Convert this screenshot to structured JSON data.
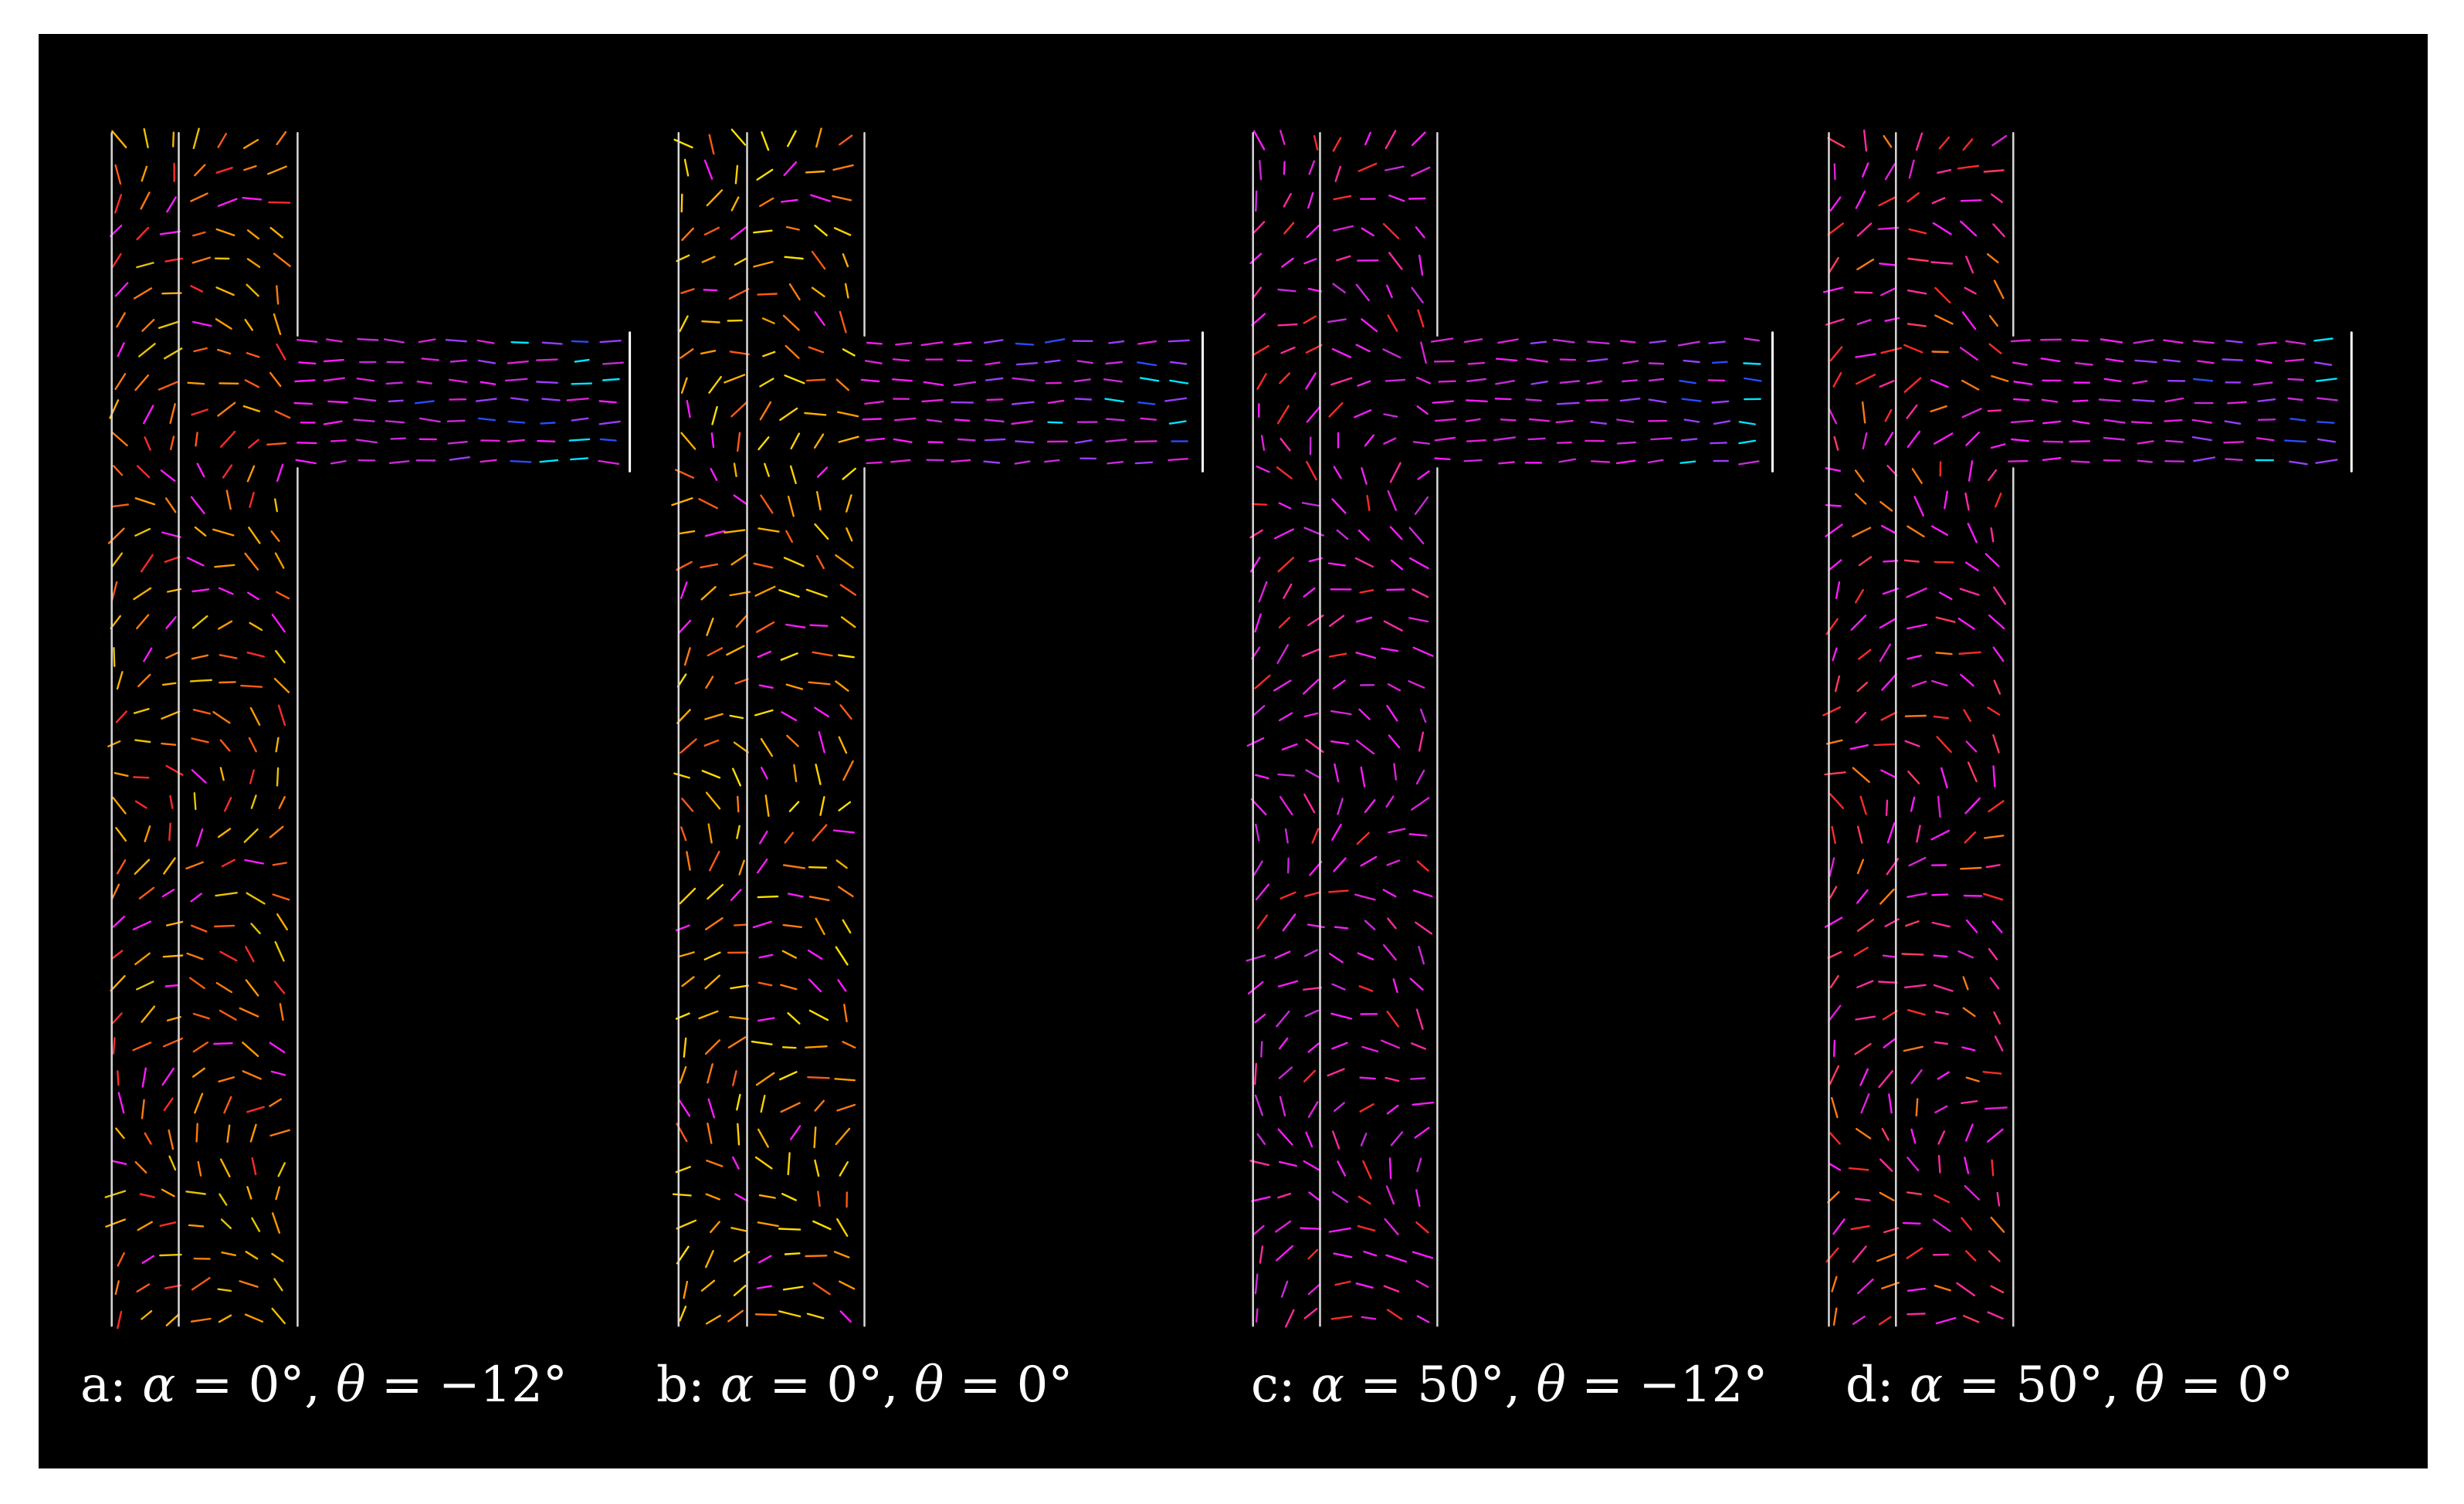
{
  "figure": {
    "background": "#000000",
    "wall_color": "#d8d8d8",
    "palette": [
      "#ff1aff",
      "#ff2aa0",
      "#ff2a2a",
      "#ff7a10",
      "#ffb000",
      "#ffe000",
      "#00e5ff",
      "#2a4bff",
      "#9a3cff"
    ],
    "panels": [
      {
        "id": "a",
        "caption": {
          "letter": "a:",
          "alpha_sym": "α",
          "alpha_val": "= 0°,",
          "theta_sym": "θ",
          "theta_val": "= −12°"
        },
        "color_scheme": "warm-orange"
      },
      {
        "id": "b",
        "caption": {
          "letter": "b:",
          "alpha_sym": "α",
          "alpha_val": "= 0°,",
          "theta_sym": "θ",
          "theta_val": "= 0°"
        },
        "color_scheme": "warm-yellow"
      },
      {
        "id": "c",
        "caption": {
          "letter": "c:",
          "alpha_sym": "α",
          "alpha_val": "= 50°,",
          "theta_sym": "θ",
          "theta_val": "= −12°"
        },
        "color_scheme": "magenta"
      },
      {
        "id": "d",
        "caption": {
          "letter": "d:",
          "alpha_sym": "α",
          "alpha_val": "= 50°,",
          "theta_sym": "θ",
          "theta_val": "= 0°"
        },
        "color_scheme": "red-magenta"
      }
    ]
  }
}
